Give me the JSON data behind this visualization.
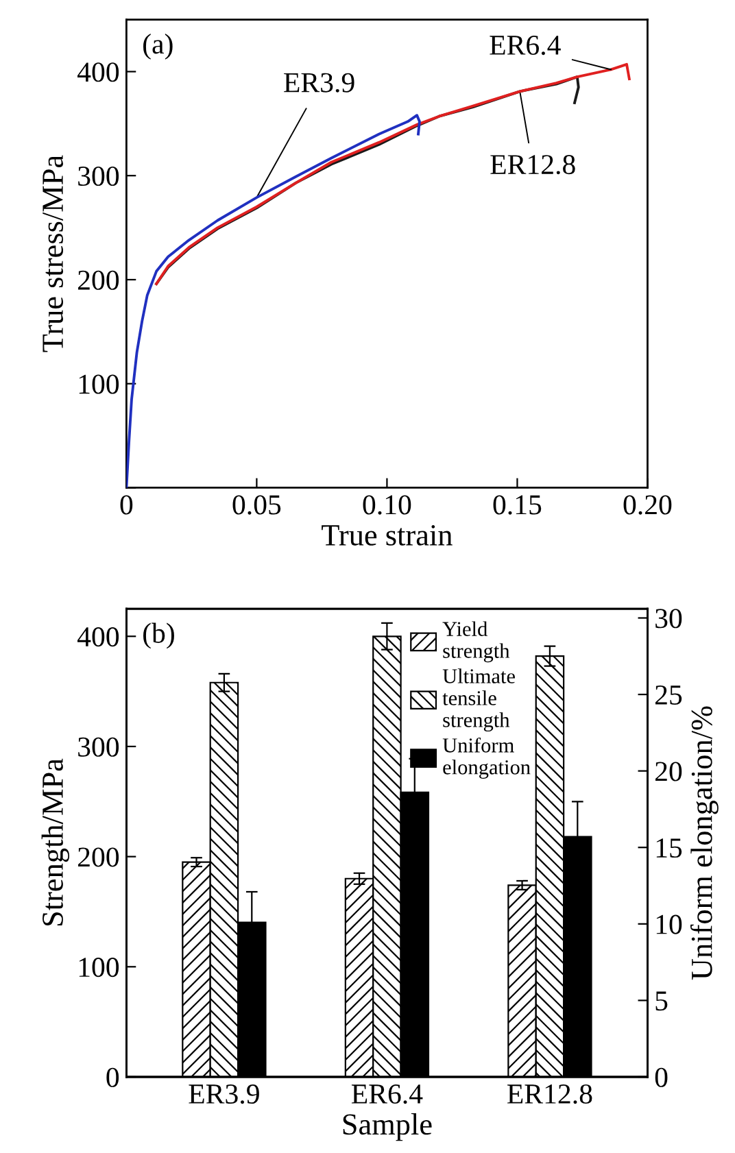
{
  "chart_data": [
    {
      "type": "line",
      "xlabel": "True strain",
      "ylabel": "True stress/MPa",
      "xlim": [
        0,
        0.2
      ],
      "ylim": [
        0,
        450
      ],
      "xticks": [
        {
          "value": 0,
          "label": "0"
        },
        0.05,
        {
          "value": 0.1,
          "label": "0.10"
        },
        0.15,
        {
          "value": 0.2,
          "label": "0.20"
        }
      ],
      "yticks": [
        {
          "value": 0,
          "label": null
        },
        100,
        200,
        300,
        400
      ],
      "series": [
        {
          "name": "ER3.9",
          "color": "#2030c0",
          "x": [
            0,
            0.001,
            0.002,
            0.004,
            0.006,
            0.008,
            0.0115,
            0.016,
            0.024,
            0.035,
            0.05,
            0.065,
            0.0787,
            0.097,
            0.108,
            0.1115,
            0.1125,
            0.112
          ],
          "values": [
            0,
            45,
            85,
            130,
            160,
            185,
            208,
            222,
            238,
            257,
            279,
            299,
            317,
            340,
            352,
            358,
            352,
            340
          ]
        },
        {
          "name": "ER12.8",
          "color": "#1a1a1a",
          "x": [
            0.0115,
            0.016,
            0.024,
            0.035,
            0.05,
            0.065,
            0.0787,
            0.097,
            0.1115,
            0.12,
            0.133,
            0.151,
            0.165,
            0.173,
            0.1735,
            0.172
          ],
          "values": [
            196,
            212,
            230,
            249,
            269,
            293,
            311,
            330,
            348,
            357,
            366,
            381,
            388,
            395,
            385,
            370
          ]
        },
        {
          "name": "ER6.4",
          "color": "#e02020",
          "x": [
            0.0115,
            0.016,
            0.024,
            0.035,
            0.05,
            0.065,
            0.0787,
            0.097,
            0.1115,
            0.12,
            0.133,
            0.151,
            0.165,
            0.173,
            0.186,
            0.192,
            0.1925,
            0.193
          ],
          "values": [
            196,
            213,
            231,
            250,
            270,
            293,
            313,
            332,
            349,
            357,
            367,
            381,
            389,
            395,
            402,
            407,
            400,
            393
          ]
        }
      ],
      "annotations": [
        "(a)"
      ],
      "line_style": "solid",
      "grid": false,
      "legend": false
    },
    {
      "type": "bar",
      "xlabel": "Sample",
      "ylabel": "Strength/MPa",
      "y2label": "Uniform elongation/%",
      "categories": [
        "ER3.9",
        "ER6.4",
        "ER12.8"
      ],
      "ylim": [
        0,
        425
      ],
      "yticks": [
        0,
        100,
        200,
        300,
        400
      ],
      "y2lim": [
        0,
        30.6
      ],
      "y2ticks": [
        0,
        5,
        10,
        15,
        20,
        25,
        30
      ],
      "series": [
        {
          "name": "Yield\nstrength",
          "color": "#000000",
          "values": [
            195,
            180,
            174
          ],
          "errors": [
            4,
            5,
            4
          ]
        },
        {
          "name": "Ultimate\ntensile\nstrength",
          "color": "#000000",
          "values": [
            358,
            400,
            382
          ],
          "errors": [
            8,
            12,
            9
          ]
        },
        {
          "name": "Uniform\nelongation",
          "color": "#000000",
          "axis": "y2",
          "values": [
            10.1,
            18.6,
            15.7
          ],
          "errors": [
            2.0,
            2.2,
            2.3
          ]
        }
      ],
      "annotations": [
        "(b)"
      ],
      "legend": "top right",
      "grid": false
    }
  ]
}
